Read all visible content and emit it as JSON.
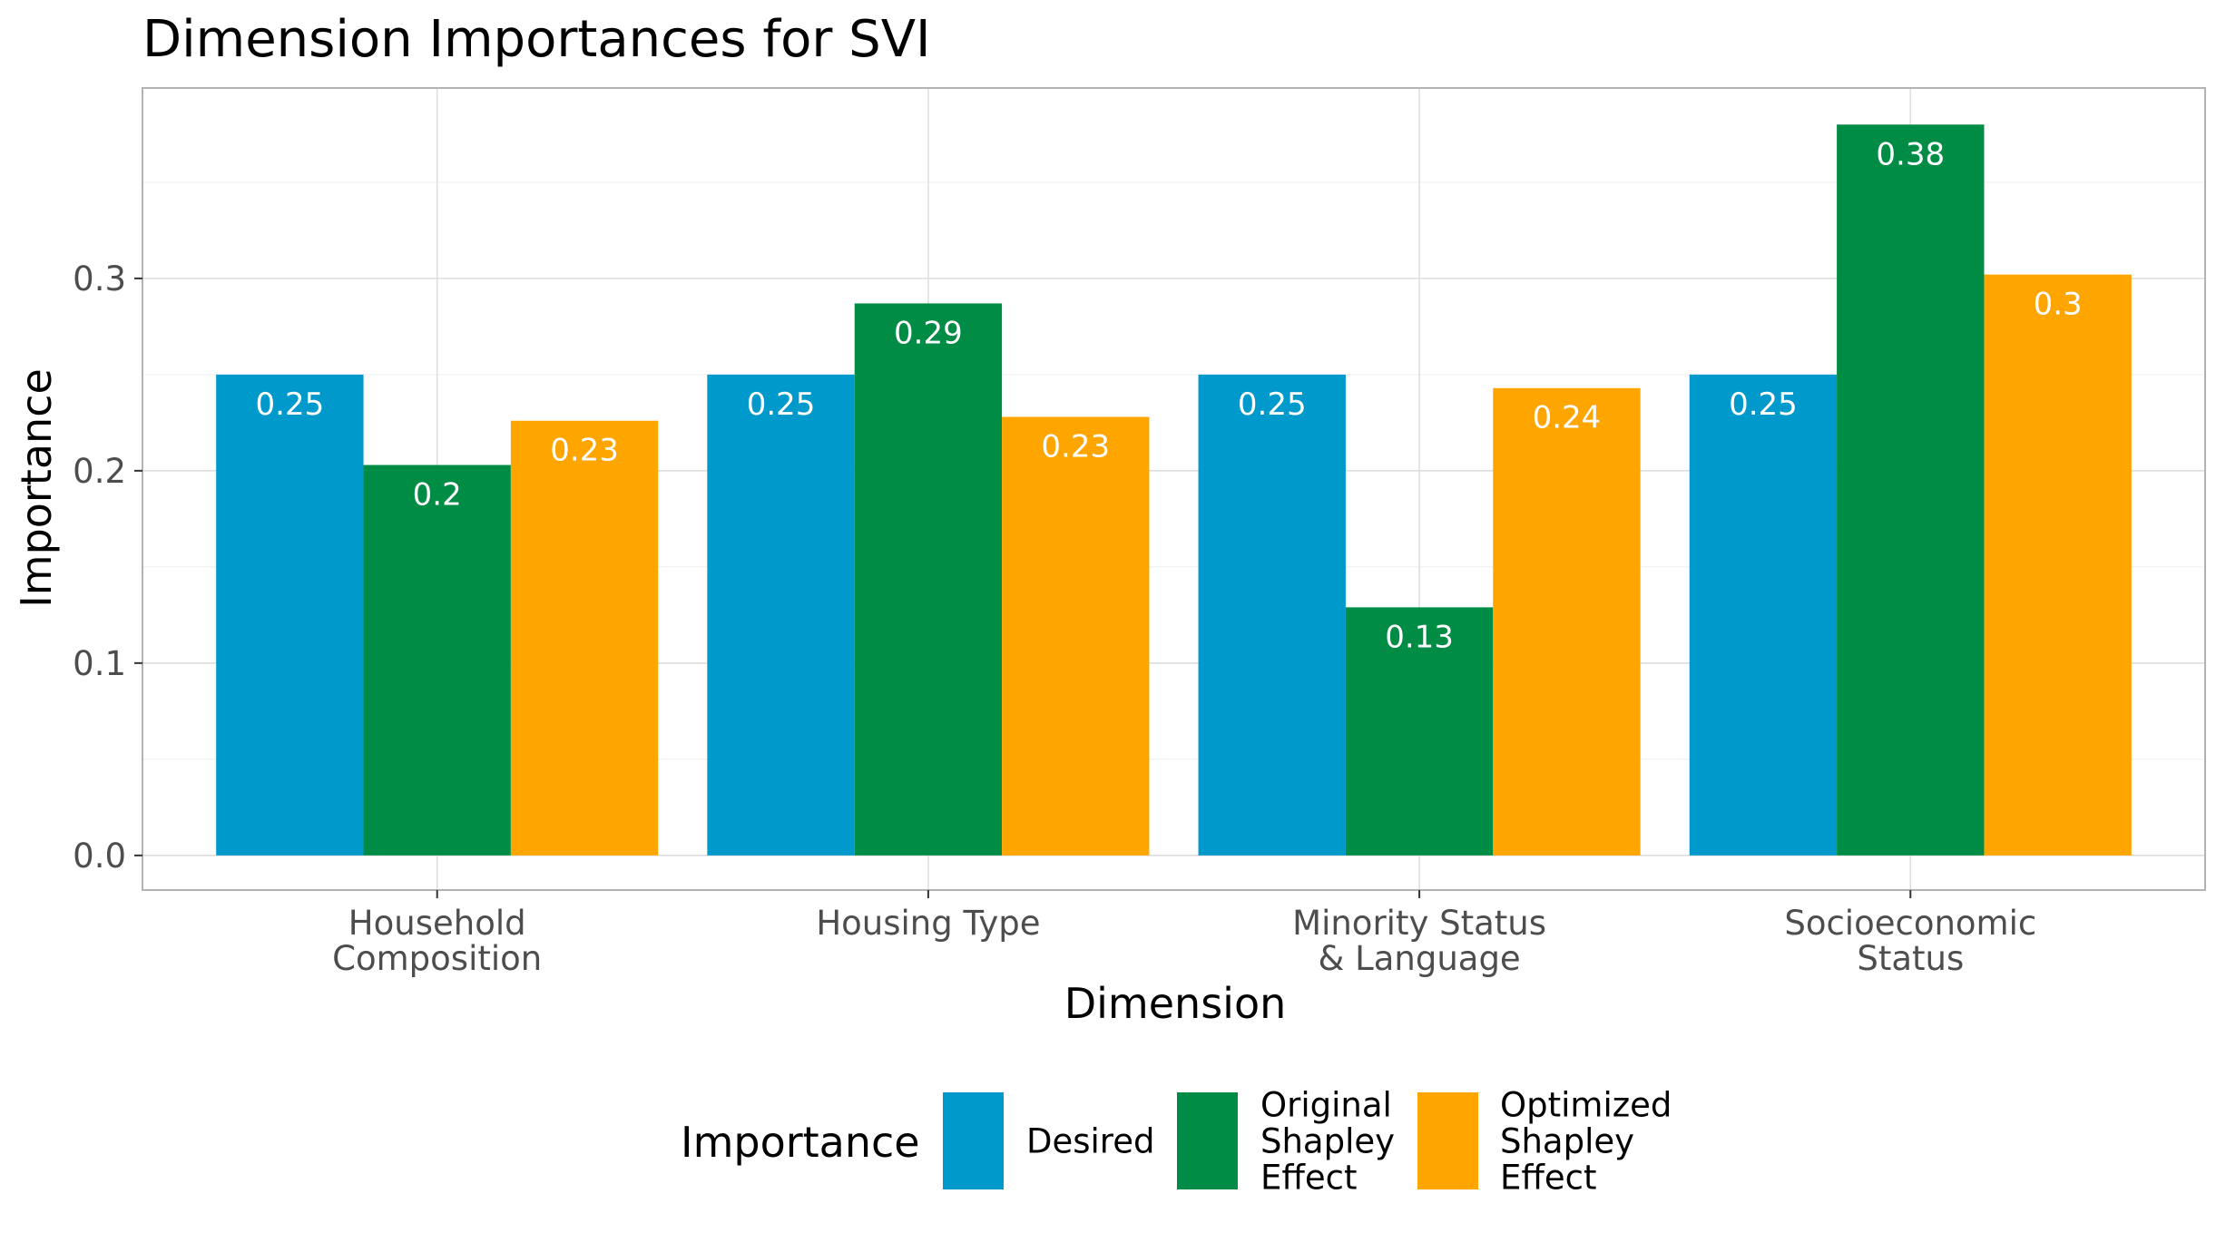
{
  "chart_data": {
    "type": "bar",
    "title": "Dimension Importances for SVI",
    "xlabel": "Dimension",
    "ylabel": "Importance",
    "categories": [
      [
        "Household",
        "Composition"
      ],
      [
        "Housing Type"
      ],
      [
        "Minority Status",
        "& Language"
      ],
      [
        "Socioeconomic",
        "Status"
      ]
    ],
    "series": [
      {
        "name": [
          "Desired"
        ],
        "color": "#0099CC",
        "values": [
          0.25,
          0.25,
          0.25,
          0.25
        ],
        "labels": [
          "0.25",
          "0.25",
          "0.25",
          "0.25"
        ]
      },
      {
        "name": [
          "Original",
          "Shapley",
          "Effect"
        ],
        "color": "#008C45",
        "values": [
          0.203,
          0.287,
          0.129,
          0.38
        ],
        "labels": [
          "0.2",
          "0.29",
          "0.13",
          "0.38"
        ]
      },
      {
        "name": [
          "Optimized",
          "Shapley",
          "Effect"
        ],
        "color": "#FFA500",
        "values": [
          0.226,
          0.228,
          0.243,
          0.302
        ],
        "labels": [
          "0.23",
          "0.23",
          "0.24",
          "0.3"
        ]
      }
    ],
    "yticks": [
      0.0,
      0.1,
      0.2,
      0.3
    ],
    "ytick_labels": [
      "0.0",
      "0.1",
      "0.2",
      "0.3"
    ],
    "ylim": [
      -0.018,
      0.399
    ],
    "grid": true,
    "legend": {
      "title": "Importance",
      "position": "bottom"
    }
  }
}
